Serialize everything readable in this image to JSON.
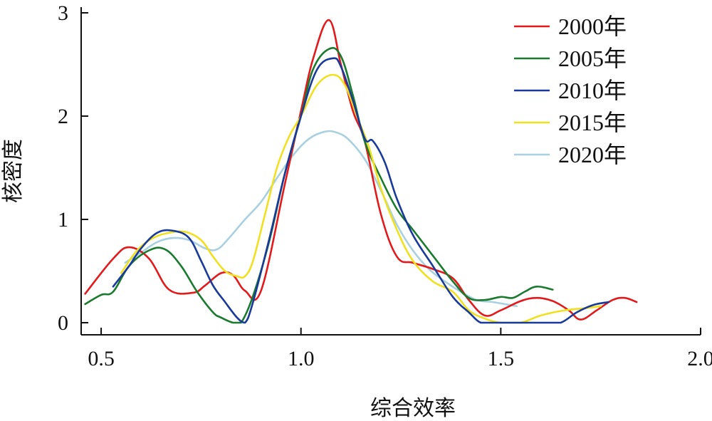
{
  "chart_data": {
    "type": "line",
    "title": "",
    "xlabel": "综合效率",
    "ylabel": "核密度",
    "xlim": [
      0.45,
      2.0
    ],
    "ylim": [
      0,
      3
    ],
    "xticks": [
      "0.5",
      "1.0",
      "1.5",
      "2.0"
    ],
    "yticks": [
      "0",
      "1",
      "2",
      "3"
    ],
    "grid": false,
    "legend_position": "top-right",
    "series": [
      {
        "name": "2000年",
        "color": "#e31a1c",
        "x": [
          0.46,
          0.53,
          0.57,
          0.62,
          0.67,
          0.73,
          0.76,
          0.8,
          0.83,
          0.86,
          0.9,
          0.96,
          1.0,
          1.03,
          1.07,
          1.1,
          1.13,
          1.16,
          1.2,
          1.24,
          1.28,
          1.33,
          1.38,
          1.42,
          1.46,
          1.5,
          1.55,
          1.59,
          1.63,
          1.67,
          1.7,
          1.74,
          1.78,
          1.81,
          1.84
        ],
        "y": [
          0.28,
          0.62,
          0.73,
          0.62,
          0.32,
          0.29,
          0.36,
          0.48,
          0.46,
          0.31,
          0.31,
          1.35,
          2.05,
          2.55,
          2.93,
          2.5,
          2.05,
          1.75,
          1.05,
          0.64,
          0.58,
          0.52,
          0.43,
          0.22,
          0.07,
          0.12,
          0.21,
          0.24,
          0.21,
          0.12,
          0.03,
          0.12,
          0.22,
          0.24,
          0.2
        ]
      },
      {
        "name": "2005年",
        "color": "#1a7a2e",
        "x": [
          0.46,
          0.5,
          0.53,
          0.57,
          0.62,
          0.66,
          0.7,
          0.74,
          0.78,
          0.8,
          0.83,
          0.85,
          0.88,
          0.92,
          0.96,
          1.0,
          1.03,
          1.07,
          1.1,
          1.13,
          1.16,
          1.2,
          1.24,
          1.28,
          1.33,
          1.38,
          1.42,
          1.46,
          1.5,
          1.53,
          1.56,
          1.59,
          1.63
        ],
        "y": [
          0.18,
          0.27,
          0.3,
          0.55,
          0.7,
          0.71,
          0.55,
          0.3,
          0.1,
          0.05,
          0.0,
          0.0,
          0.26,
          0.78,
          1.45,
          2.0,
          2.45,
          2.65,
          2.58,
          2.2,
          1.75,
          1.4,
          1.1,
          0.9,
          0.65,
          0.4,
          0.24,
          0.22,
          0.25,
          0.24,
          0.3,
          0.35,
          0.32
        ]
      },
      {
        "name": "2010年",
        "color": "#1a3a9a",
        "x": [
          0.53,
          0.57,
          0.6,
          0.64,
          0.68,
          0.72,
          0.75,
          0.78,
          0.81,
          0.84,
          0.86,
          0.88,
          0.92,
          0.96,
          1.0,
          1.04,
          1.08,
          1.1,
          1.13,
          1.16,
          1.18,
          1.21,
          1.24,
          1.28,
          1.33,
          1.38,
          1.42,
          1.45,
          1.48,
          1.51,
          1.54,
          1.58,
          1.61,
          1.65,
          1.69,
          1.73,
          1.77
        ],
        "y": [
          0.35,
          0.55,
          0.72,
          0.87,
          0.89,
          0.82,
          0.6,
          0.36,
          0.2,
          0.05,
          0.0,
          0.2,
          0.8,
          1.45,
          2.0,
          2.45,
          2.56,
          2.48,
          2.15,
          1.78,
          1.76,
          1.55,
          1.2,
          0.85,
          0.55,
          0.25,
          0.1,
          0.0,
          0.0,
          0.0,
          0.0,
          0.0,
          0.0,
          0.0,
          0.1,
          0.17,
          0.2
        ]
      },
      {
        "name": "2015年",
        "color": "#f0e020",
        "x": [
          0.55,
          0.59,
          0.63,
          0.67,
          0.71,
          0.75,
          0.78,
          0.81,
          0.84,
          0.86,
          0.88,
          0.91,
          0.94,
          0.97,
          1.0,
          1.04,
          1.08,
          1.11,
          1.14,
          1.17,
          1.2,
          1.24,
          1.28,
          1.33,
          1.38,
          1.42,
          1.46,
          1.5,
          1.55,
          1.6,
          1.66,
          1.71,
          1.75
        ],
        "y": [
          0.48,
          0.7,
          0.82,
          0.87,
          0.88,
          0.8,
          0.64,
          0.5,
          0.45,
          0.45,
          0.6,
          1.05,
          1.5,
          1.8,
          2.0,
          2.3,
          2.4,
          2.3,
          2.0,
          1.7,
          1.3,
          0.9,
          0.6,
          0.4,
          0.3,
          0.12,
          0.04,
          0.0,
          0.0,
          0.07,
          0.12,
          0.14,
          0.16
        ]
      },
      {
        "name": "2020年",
        "color": "#a8d0e0",
        "x": [
          0.56,
          0.6,
          0.64,
          0.68,
          0.72,
          0.76,
          0.79,
          0.82,
          0.86,
          0.9,
          0.94,
          0.98,
          1.02,
          1.06,
          1.09,
          1.12,
          1.16,
          1.2,
          1.24,
          1.28,
          1.32,
          1.36,
          1.4,
          1.44,
          1.48,
          1.51,
          1.54
        ],
        "y": [
          0.58,
          0.68,
          0.78,
          0.82,
          0.8,
          0.72,
          0.71,
          0.82,
          1.0,
          1.17,
          1.4,
          1.62,
          1.78,
          1.85,
          1.84,
          1.77,
          1.58,
          1.28,
          0.95,
          0.7,
          0.52,
          0.4,
          0.3,
          0.22,
          0.2,
          0.18,
          0.16
        ]
      }
    ]
  }
}
